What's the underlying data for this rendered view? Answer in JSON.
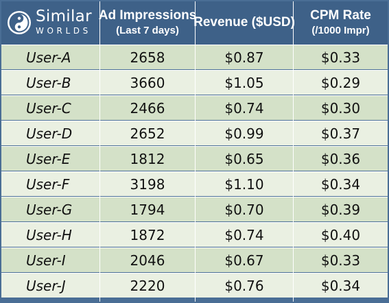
{
  "logo": {
    "name": "Similar",
    "sub": "WORLDS"
  },
  "columns": [
    {
      "main": "Ad Impressions",
      "sub": "(Last 7 days)"
    },
    {
      "main": "Revenue ($USD)",
      "sub": ""
    },
    {
      "main": "CPM Rate",
      "sub": "(/1000 Impr)"
    }
  ],
  "rows": [
    {
      "user": "User-A",
      "impressions": "2658",
      "revenue": "$0.87",
      "cpm": "$0.33"
    },
    {
      "user": "User-B",
      "impressions": "3660",
      "revenue": "$1.05",
      "cpm": "$0.29"
    },
    {
      "user": "User-C",
      "impressions": "2466",
      "revenue": "$0.74",
      "cpm": "$0.30"
    },
    {
      "user": "User-D",
      "impressions": "2652",
      "revenue": "$0.99",
      "cpm": "$0.37"
    },
    {
      "user": "User-E",
      "impressions": "1812",
      "revenue": "$0.65",
      "cpm": "$0.36"
    },
    {
      "user": "User-F",
      "impressions": "3198",
      "revenue": "$1.10",
      "cpm": "$0.34"
    },
    {
      "user": "User-G",
      "impressions": "1794",
      "revenue": "$0.70",
      "cpm": "$0.39"
    },
    {
      "user": "User-H",
      "impressions": "1872",
      "revenue": "$0.74",
      "cpm": "$0.40"
    },
    {
      "user": "User-I",
      "impressions": "2046",
      "revenue": "$0.67",
      "cpm": "$0.33"
    },
    {
      "user": "User-J",
      "impressions": "2220",
      "revenue": "$0.76",
      "cpm": "$0.34"
    }
  ],
  "colors": {
    "header": "#3e6188",
    "row_odd": "#d4e1c8",
    "row_even": "#eaf0e2",
    "border": "#ffffff"
  }
}
